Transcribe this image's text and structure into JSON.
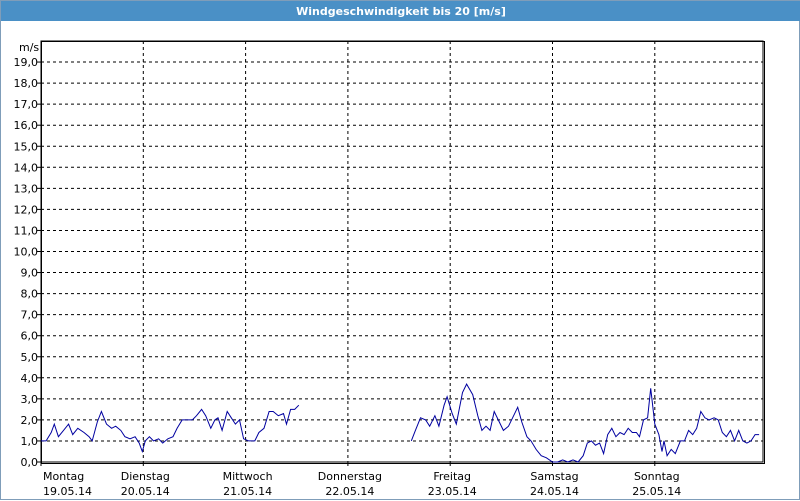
{
  "title": "Windgeschwindigkeit bis 20 [m/s]",
  "chart_data": {
    "type": "line",
    "title": "Windgeschwindigkeit bis 20 [m/s]",
    "xlabel": "",
    "ylabel": "m/s",
    "ylim": [
      0,
      20
    ],
    "yticks": [
      "0,0",
      "1,0",
      "2,0",
      "3,0",
      "4,0",
      "5,0",
      "6,0",
      "7,0",
      "8,0",
      "9,0",
      "10,0",
      "11,0",
      "12,0",
      "13,0",
      "14,0",
      "15,0",
      "16,0",
      "17,0",
      "18,0",
      "19,0"
    ],
    "grid": true,
    "day_labels": [
      {
        "day": "Montag",
        "date": "19.05.14"
      },
      {
        "day": "Dienstag",
        "date": "20.05.14"
      },
      {
        "day": "Mittwoch",
        "date": "21.05.14"
      },
      {
        "day": "Donnerstag",
        "date": "22.05.14"
      },
      {
        "day": "Freitag",
        "date": "23.05.14"
      },
      {
        "day": "Samstag",
        "date": "24.05.14"
      },
      {
        "day": "Sonntag",
        "date": "25.05.14"
      }
    ],
    "series": [
      {
        "color": "#0000a0",
        "x_unit": "days since Montag 19.05.14 00:00",
        "segments": [
          [
            [
              0.0,
              1.0
            ],
            [
              0.05,
              1.0
            ],
            [
              0.1,
              1.4
            ],
            [
              0.13,
              1.8
            ],
            [
              0.17,
              1.2
            ],
            [
              0.22,
              1.5
            ],
            [
              0.27,
              1.8
            ],
            [
              0.31,
              1.3
            ],
            [
              0.36,
              1.6
            ],
            [
              0.42,
              1.4
            ],
            [
              0.47,
              1.2
            ],
            [
              0.5,
              1.0
            ],
            [
              0.55,
              1.9
            ],
            [
              0.59,
              2.4
            ],
            [
              0.64,
              1.8
            ],
            [
              0.69,
              1.6
            ],
            [
              0.73,
              1.7
            ],
            [
              0.78,
              1.5
            ],
            [
              0.82,
              1.2
            ],
            [
              0.87,
              1.1
            ],
            [
              0.92,
              1.2
            ],
            [
              0.96,
              0.9
            ],
            [
              0.99,
              0.5
            ],
            [
              1.02,
              1.0
            ],
            [
              1.06,
              1.2
            ],
            [
              1.1,
              1.0
            ],
            [
              1.15,
              1.1
            ],
            [
              1.19,
              0.9
            ],
            [
              1.24,
              1.1
            ],
            [
              1.29,
              1.2
            ],
            [
              1.33,
              1.6
            ],
            [
              1.38,
              2.0
            ],
            [
              1.43,
              2.0
            ],
            [
              1.48,
              2.0
            ],
            [
              1.52,
              2.2
            ],
            [
              1.57,
              2.5
            ],
            [
              1.61,
              2.2
            ],
            [
              1.66,
              1.6
            ],
            [
              1.7,
              2.0
            ],
            [
              1.73,
              2.1
            ],
            [
              1.77,
              1.5
            ],
            [
              1.82,
              2.4
            ],
            [
              1.86,
              2.1
            ],
            [
              1.9,
              1.8
            ],
            [
              1.94,
              2.0
            ],
            [
              1.98,
              1.1
            ],
            [
              2.03,
              1.0
            ],
            [
              2.09,
              1.0
            ],
            [
              2.13,
              1.4
            ],
            [
              2.18,
              1.6
            ],
            [
              2.23,
              2.4
            ],
            [
              2.27,
              2.4
            ],
            [
              2.32,
              2.2
            ],
            [
              2.37,
              2.3
            ],
            [
              2.4,
              1.8
            ],
            [
              2.44,
              2.5
            ],
            [
              2.48,
              2.5
            ],
            [
              2.52,
              2.7
            ]
          ],
          [
            [
              3.62,
              1.0
            ],
            [
              3.66,
              1.5
            ],
            [
              3.71,
              2.1
            ],
            [
              3.76,
              2.0
            ],
            [
              3.8,
              1.7
            ],
            [
              3.85,
              2.2
            ],
            [
              3.89,
              1.7
            ],
            [
              3.94,
              2.7
            ],
            [
              3.97,
              3.1
            ],
            [
              4.02,
              2.3
            ],
            [
              4.06,
              1.8
            ],
            [
              4.12,
              3.3
            ],
            [
              4.16,
              3.7
            ],
            [
              4.22,
              3.2
            ],
            [
              4.27,
              2.2
            ],
            [
              4.31,
              1.5
            ],
            [
              4.35,
              1.7
            ],
            [
              4.39,
              1.5
            ],
            [
              4.43,
              2.4
            ],
            [
              4.48,
              1.9
            ],
            [
              4.52,
              1.5
            ],
            [
              4.57,
              1.7
            ],
            [
              4.61,
              2.1
            ],
            [
              4.66,
              2.6
            ],
            [
              4.7,
              1.9
            ],
            [
              4.75,
              1.2
            ],
            [
              4.79,
              1.0
            ],
            [
              4.84,
              0.6
            ],
            [
              4.89,
              0.3
            ],
            [
              4.94,
              0.2
            ],
            [
              5.0,
              0.0
            ],
            [
              5.05,
              0.0
            ],
            [
              5.1,
              0.1
            ],
            [
              5.15,
              0.0
            ],
            [
              5.2,
              0.1
            ],
            [
              5.25,
              0.0
            ],
            [
              5.3,
              0.3
            ],
            [
              5.34,
              0.9
            ],
            [
              5.38,
              1.0
            ],
            [
              5.42,
              0.8
            ],
            [
              5.46,
              0.9
            ],
            [
              5.5,
              0.4
            ],
            [
              5.54,
              1.3
            ],
            [
              5.58,
              1.6
            ],
            [
              5.62,
              1.2
            ],
            [
              5.66,
              1.4
            ],
            [
              5.7,
              1.3
            ],
            [
              5.74,
              1.6
            ],
            [
              5.78,
              1.4
            ],
            [
              5.82,
              1.4
            ],
            [
              5.85,
              1.2
            ],
            [
              5.89,
              2.0
            ],
            [
              5.93,
              2.1
            ],
            [
              5.96,
              3.5
            ],
            [
              6.0,
              1.8
            ],
            [
              6.04,
              1.3
            ],
            [
              6.07,
              0.5
            ],
            [
              6.09,
              1.0
            ],
            [
              6.12,
              0.3
            ],
            [
              6.16,
              0.6
            ],
            [
              6.2,
              0.4
            ],
            [
              6.25,
              1.0
            ],
            [
              6.29,
              1.0
            ],
            [
              6.33,
              1.5
            ],
            [
              6.37,
              1.3
            ],
            [
              6.41,
              1.6
            ],
            [
              6.45,
              2.4
            ],
            [
              6.49,
              2.1
            ],
            [
              6.53,
              2.0
            ],
            [
              6.58,
              2.1
            ],
            [
              6.62,
              2.0
            ],
            [
              6.66,
              1.4
            ],
            [
              6.7,
              1.2
            ],
            [
              6.74,
              1.5
            ],
            [
              6.78,
              1.0
            ],
            [
              6.82,
              1.5
            ],
            [
              6.86,
              1.0
            ],
            [
              6.9,
              0.9
            ],
            [
              6.94,
              1.0
            ],
            [
              6.98,
              1.3
            ],
            [
              7.02,
              1.3
            ]
          ]
        ]
      }
    ]
  }
}
